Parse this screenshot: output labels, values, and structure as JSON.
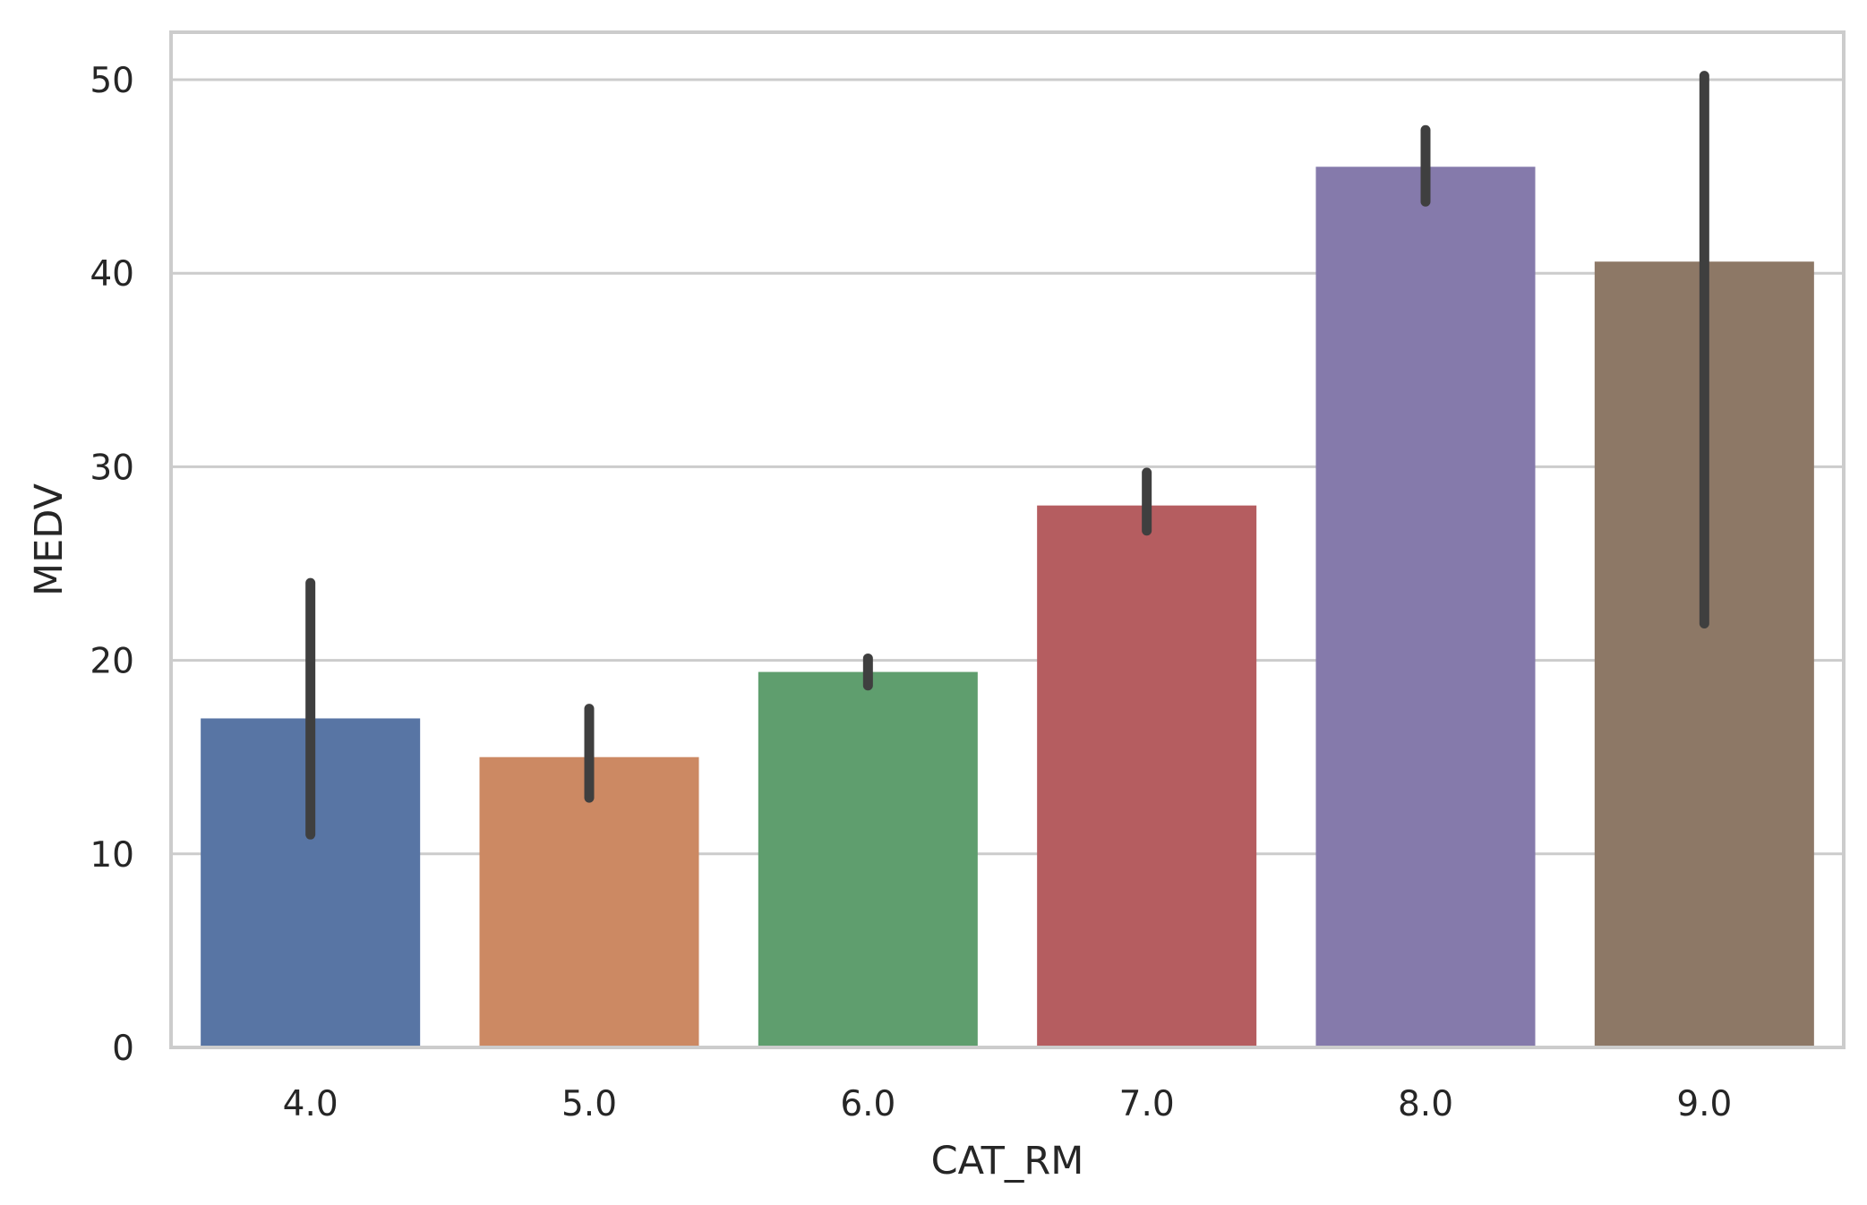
{
  "chart_data": {
    "type": "bar",
    "xlabel": "CAT_RM",
    "ylabel": "MEDV",
    "categories": [
      "4.0",
      "5.0",
      "6.0",
      "7.0",
      "8.0",
      "9.0"
    ],
    "values": [
      17.0,
      15.0,
      19.4,
      28.0,
      45.5,
      40.6
    ],
    "error_low": [
      11.0,
      12.9,
      18.7,
      26.7,
      43.7,
      21.9
    ],
    "error_high": [
      24.0,
      17.5,
      20.1,
      29.7,
      47.4,
      50.2
    ],
    "ylim": [
      0,
      52.5
    ],
    "yticks": [
      0,
      10,
      20,
      30,
      40,
      50
    ],
    "grid": true,
    "colors": [
      "#5875a4",
      "#cc8963",
      "#5f9e6e",
      "#b55d60",
      "#857aab",
      "#8d7866"
    ],
    "errorbar_color": "#3f3f3f",
    "grid_color": "#cccccc"
  }
}
